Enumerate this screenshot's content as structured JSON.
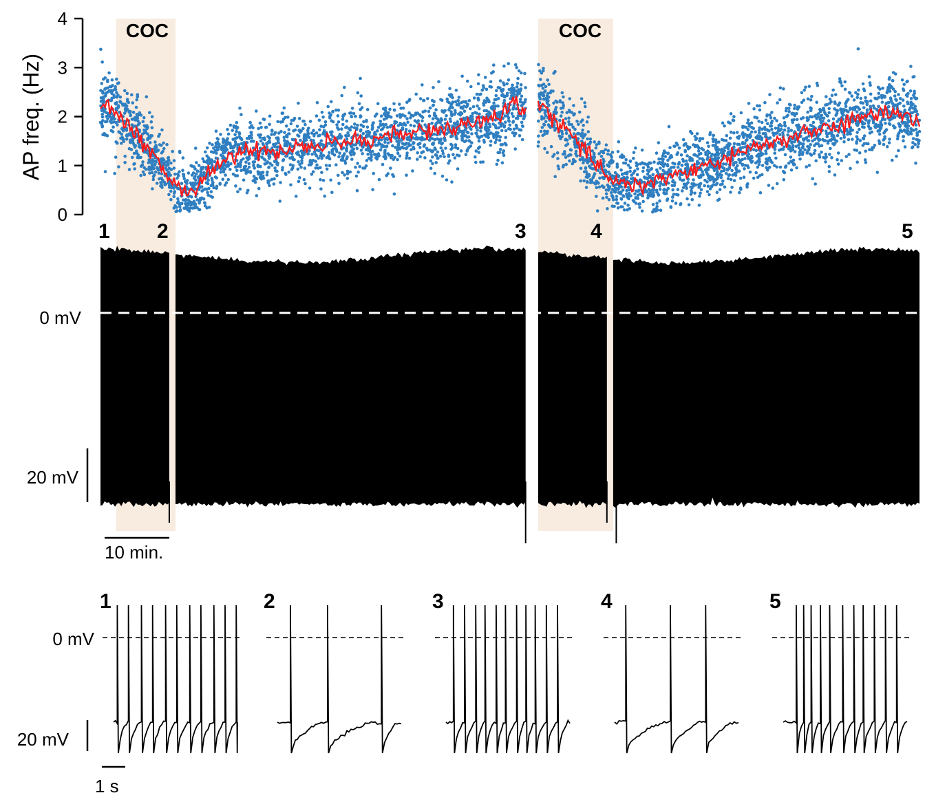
{
  "colors": {
    "scatter": "#2f7fc1",
    "mean_line": "#ff1a1a",
    "shade": "#f8ece0",
    "trace": "#000000",
    "zero_line_main": "#ffffff",
    "zero_line_insets": "#000000"
  },
  "chart_data": [
    {
      "type": "scatter",
      "ylabel": "AP freq. (Hz)",
      "yticks": [
        "0",
        "1",
        "2",
        "3",
        "4"
      ],
      "ylim": [
        0,
        4
      ],
      "shade_label": "COC",
      "shaded_periods": [
        {
          "label": "COC",
          "start_min": 2.5,
          "end_min": 12
        },
        {
          "label": "COC",
          "start_min": 70,
          "end_min": 82
        }
      ],
      "series": [
        {
          "name": "",
          "role": "running mean",
          "x": [
            0,
            2,
            4,
            6,
            8,
            10,
            12,
            14,
            16,
            18,
            20,
            22,
            25,
            28,
            31,
            34,
            37,
            40,
            43,
            46,
            49,
            52,
            55,
            58,
            61,
            64,
            66,
            68
          ],
          "y": [
            2.3,
            2.15,
            1.95,
            1.6,
            1.25,
            0.95,
            0.6,
            0.45,
            0.6,
            0.9,
            1.15,
            1.3,
            1.25,
            1.3,
            1.35,
            1.4,
            1.45,
            1.5,
            1.55,
            1.6,
            1.65,
            1.7,
            1.75,
            1.8,
            1.9,
            2.0,
            2.25,
            2.1
          ]
        },
        {
          "name": "",
          "role": "running mean",
          "x": [
            70,
            72,
            74,
            76,
            78,
            80,
            82,
            84,
            86,
            88,
            90,
            93,
            96,
            99,
            102,
            105,
            108,
            111,
            114,
            117,
            120,
            123,
            126,
            129,
            131
          ],
          "y": [
            2.4,
            2.0,
            1.75,
            1.5,
            1.2,
            1.0,
            0.7,
            0.65,
            0.6,
            0.65,
            0.75,
            0.85,
            0.95,
            1.1,
            1.25,
            1.35,
            1.5,
            1.6,
            1.7,
            1.8,
            1.9,
            2.0,
            2.1,
            2.05,
            1.85
          ]
        }
      ],
      "xlim": [
        0,
        131
      ],
      "gaps": [
        [
          68,
          70
        ]
      ]
    },
    {
      "type": "line",
      "title": "",
      "zero_label": "0 mV",
      "scale_bar_v": "20 mV",
      "scale_bar_t": "10 min.",
      "markers": [
        {
          "label": "1",
          "at_min": 0
        },
        {
          "label": "2",
          "at_min": 11
        },
        {
          "label": "3",
          "at_min": 68
        },
        {
          "label": "4",
          "at_min": 81
        },
        {
          "label": "5",
          "at_min": 131
        }
      ],
      "gaps_min": [
        [
          11,
          12
        ],
        [
          68,
          70
        ],
        [
          81,
          82
        ]
      ]
    },
    {
      "type": "line",
      "zero_label": "0 mV",
      "scale_bar_v": "20 mV",
      "scale_bar_t": "1 s",
      "insets": [
        {
          "label": "1",
          "spike_times_s": [
            0.1,
            0.4,
            0.75,
            1.05,
            1.4,
            1.7,
            2.05,
            2.35,
            2.7,
            3.0,
            3.3
          ]
        },
        {
          "label": "2",
          "spike_times_s": [
            0.35,
            1.35,
            2.8
          ]
        },
        {
          "label": "3",
          "spike_times_s": [
            0.2,
            0.5,
            0.8,
            1.05,
            1.35,
            1.6,
            1.9,
            2.15,
            2.4,
            2.7,
            3.0
          ]
        },
        {
          "label": "4",
          "spike_times_s": [
            0.3,
            1.5,
            2.45
          ]
        },
        {
          "label": "5",
          "spike_times_s": [
            0.35,
            0.55,
            0.75,
            1.0,
            1.25,
            1.6,
            1.9,
            2.15,
            2.45,
            2.75,
            3.05
          ]
        }
      ]
    }
  ]
}
